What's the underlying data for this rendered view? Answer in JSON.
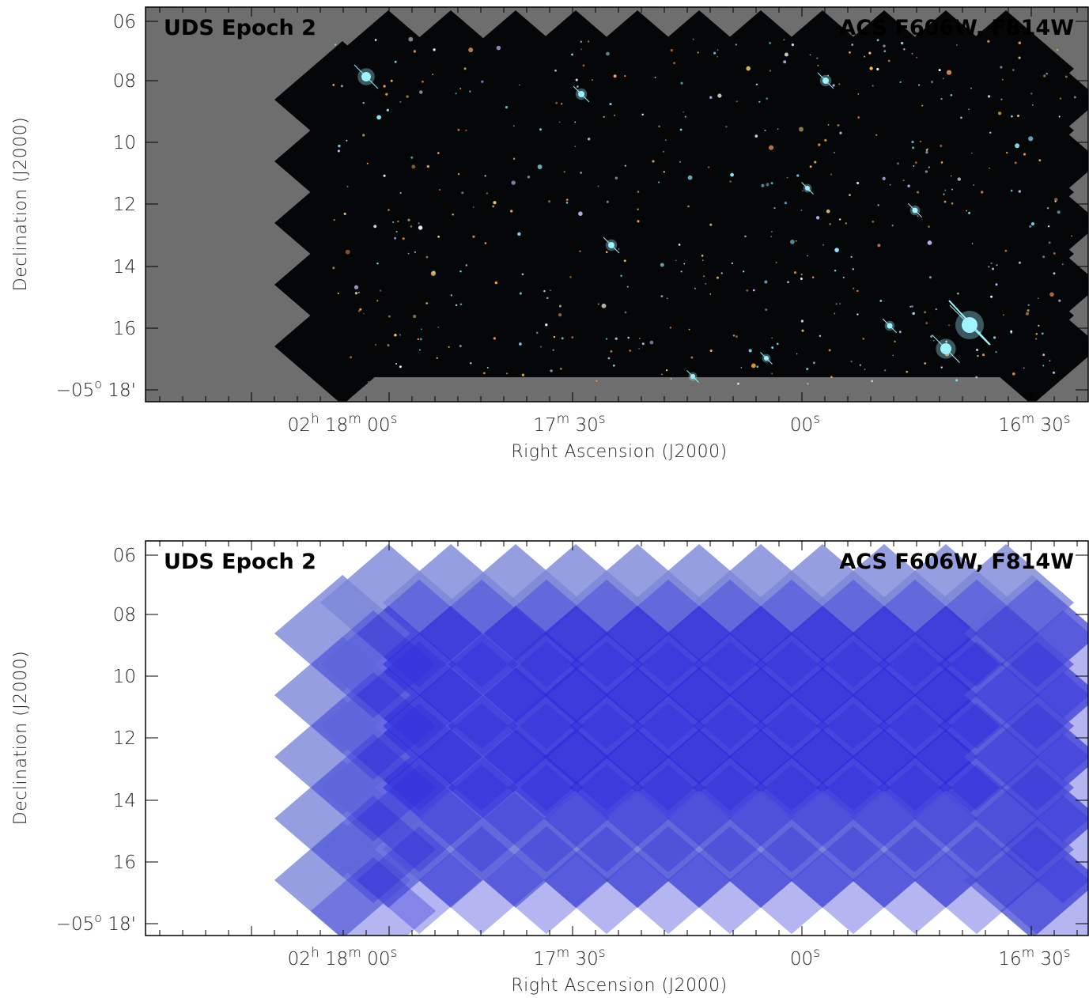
{
  "panels": [
    {
      "id": "top",
      "label_left": "UDS Epoch 2",
      "label_right": "ACS F606W, F814W",
      "label_color": "#000000",
      "background_color": "#6e6e6e",
      "content": "color-image"
    },
    {
      "id": "bottom",
      "label_left": "UDS Epoch 2",
      "label_right": "ACS F606W, F814W",
      "label_color": "#000000",
      "background_color": "#ffffff",
      "content": "exposure-map"
    }
  ],
  "axes": {
    "xlabel": "Right Ascension (J2000)",
    "ylabel": "Declination (J2000)",
    "y_ticks": [
      "06",
      "08",
      "10",
      "12",
      "14",
      "16",
      "18'"
    ],
    "y_first_prefix": "−05",
    "y_first_unit": "o",
    "x_ticks": [
      {
        "pre": "02",
        "sup1": "h",
        "mid": " 18",
        "sup2": "m",
        "tail": " 00",
        "sup3": "s"
      },
      {
        "pre": "17",
        "sup1": "m",
        "mid": " 30",
        "sup2": "s",
        "tail": "",
        "sup3": ""
      },
      {
        "pre": "00",
        "sup1": "s",
        "mid": "",
        "sup2": "",
        "tail": "",
        "sup3": ""
      },
      {
        "pre": "16",
        "sup1": "m",
        "mid": " 30",
        "sup2": "s",
        "tail": "",
        "sup3": ""
      }
    ]
  },
  "colors": {
    "tile_dark": "#050608",
    "exposure_blue": "#2a2adb",
    "exposure_light": "#7a86d8",
    "star_cyan": "#9ef3ff"
  }
}
